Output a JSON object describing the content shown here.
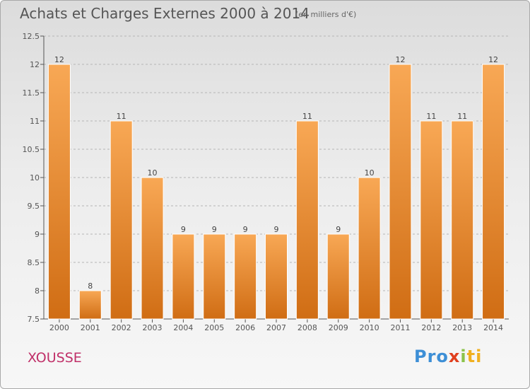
{
  "chart_data": {
    "type": "bar",
    "title": "Achats et Charges Externes 2000 à 2014",
    "subtitle": "(en milliers d'€)",
    "categories": [
      "2000",
      "2001",
      "2002",
      "2003",
      "2004",
      "2005",
      "2006",
      "2007",
      "2008",
      "2009",
      "2010",
      "2011",
      "2012",
      "2013",
      "2014"
    ],
    "values": [
      12,
      8,
      11,
      10,
      9,
      9,
      9,
      9,
      11,
      9,
      10,
      12,
      11,
      11,
      12
    ],
    "ylim": [
      7.5,
      12.5
    ],
    "yticks": [
      "7.5",
      "8",
      "8.5",
      "9",
      "9.5",
      "10",
      "10.5",
      "11",
      "11.5",
      "12",
      "12.5"
    ],
    "grid": true,
    "bar_color": "#f28c28"
  },
  "commune": "XOUSSE",
  "logo": [
    "Pro",
    "x",
    "i",
    "ti"
  ]
}
